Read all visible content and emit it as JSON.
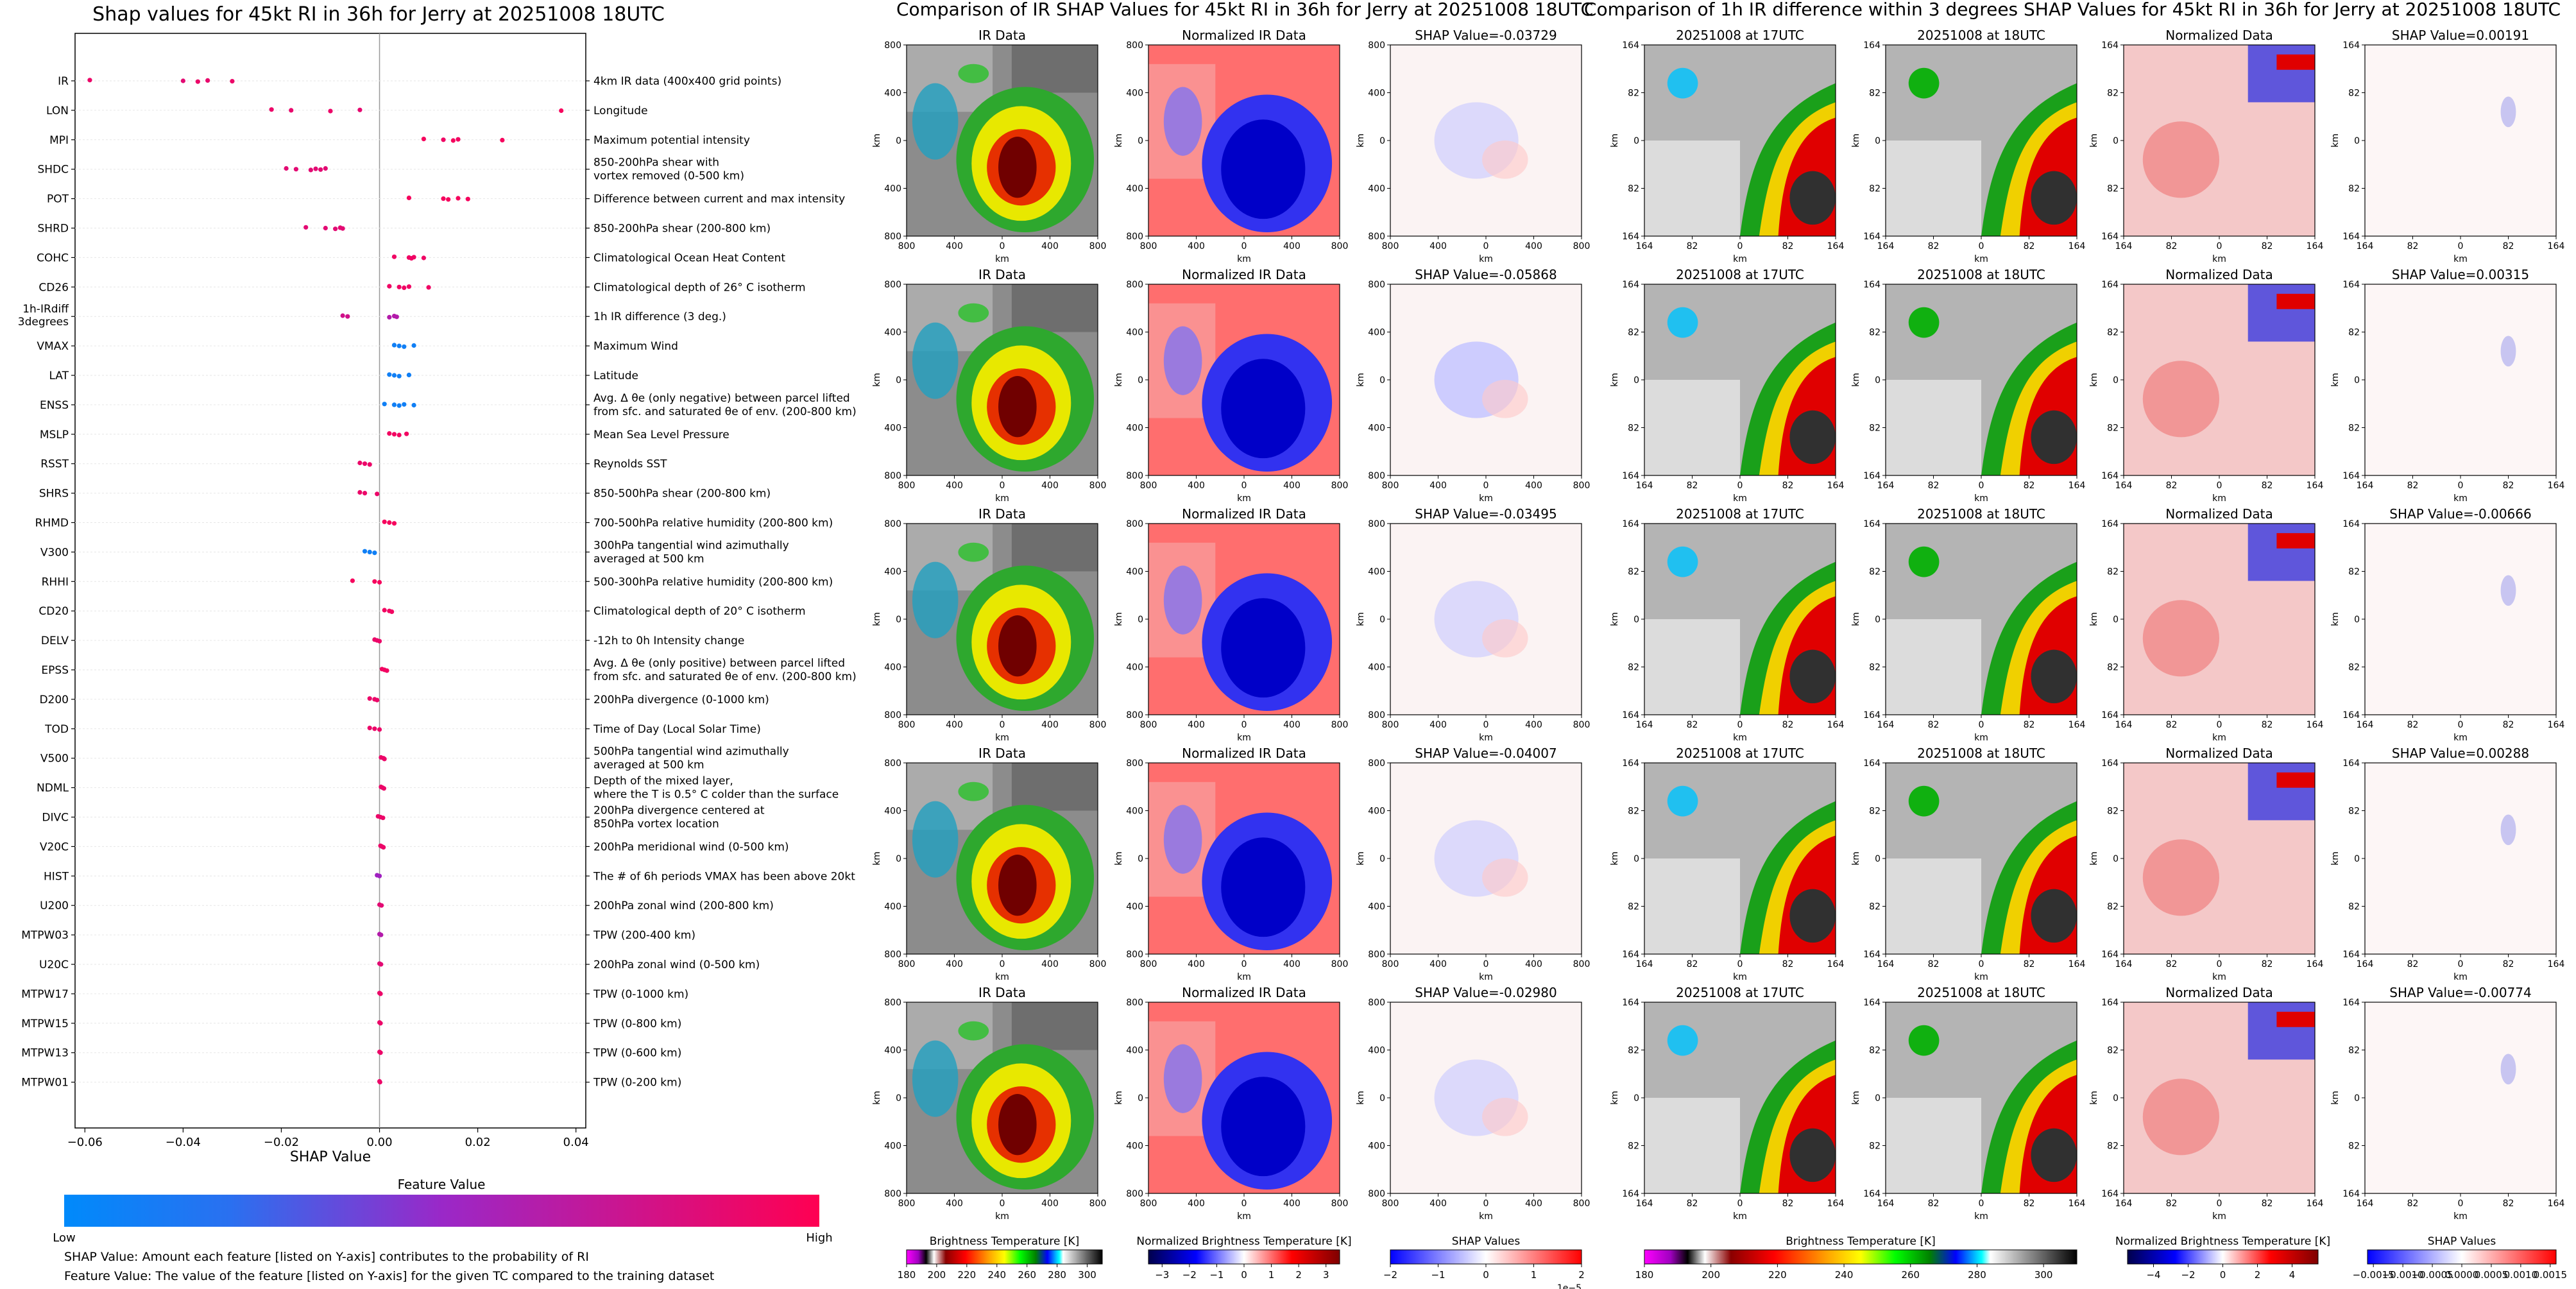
{
  "colors": {
    "low": "#008afb",
    "mid": "#a020c0",
    "high": "#ff0052",
    "axis": "#000000",
    "grid": "#e6e6e6",
    "zero_line": "#999999",
    "swatch_gray_light": "#d8d8d8",
    "swatch_gray_dark": "#505050",
    "swatch_red": "#ff5a5a",
    "swatch_blue": "#1010d0",
    "swatch_white": "#ffffff"
  },
  "chart_data": [
    {
      "type": "scatter",
      "title": "Shap values for 45kt RI in 36h for Jerry at 20251008 18UTC",
      "xlabel": "SHAP Value",
      "ylabel": "",
      "xlim": [
        -0.062,
        0.042
      ],
      "xticks": [
        -0.06,
        -0.04,
        -0.02,
        0.0,
        0.02,
        0.04
      ],
      "xtick_labels": [
        "−0.06",
        "−0.04",
        "−0.02",
        "0.00",
        "0.02",
        "0.04"
      ],
      "features": [
        {
          "name": "IR",
          "desc": [
            "4km IR data (400x400 grid points)"
          ],
          "shap": [
            -0.059,
            -0.04,
            -0.037,
            -0.035,
            -0.03
          ],
          "fv": [
            0.9,
            0.85,
            0.9,
            0.88,
            0.9
          ]
        },
        {
          "name": "LON",
          "desc": [
            "Longitude"
          ],
          "shap": [
            -0.022,
            -0.018,
            -0.01,
            -0.004,
            0.037
          ],
          "fv": [
            0.9,
            0.88,
            0.9,
            0.87,
            0.95
          ]
        },
        {
          "name": "MPI",
          "desc": [
            "Maximum potential intensity"
          ],
          "shap": [
            0.009,
            0.013,
            0.015,
            0.016,
            0.025
          ],
          "fv": [
            0.95,
            0.92,
            0.95,
            0.93,
            0.95
          ]
        },
        {
          "name": "SHDC",
          "desc": [
            "850-200hPa shear with",
            "vortex removed (0-500 km)"
          ],
          "shap": [
            -0.019,
            -0.017,
            -0.014,
            -0.013,
            -0.012,
            -0.011
          ],
          "fv": [
            0.85,
            0.85,
            0.85,
            0.85,
            0.85,
            0.85
          ]
        },
        {
          "name": "POT",
          "desc": [
            "Difference between current and max intensity"
          ],
          "shap": [
            0.006,
            0.013,
            0.014,
            0.016,
            0.018
          ],
          "fv": [
            0.95,
            0.95,
            0.95,
            0.95,
            0.95
          ]
        },
        {
          "name": "SHRD",
          "desc": [
            "850-200hPa shear (200-800 km)"
          ],
          "shap": [
            -0.015,
            -0.011,
            -0.009,
            -0.008,
            -0.0075
          ],
          "fv": [
            0.85,
            0.85,
            0.85,
            0.85,
            0.85
          ]
        },
        {
          "name": "COHC",
          "desc": [
            "Climatological Ocean Heat Content"
          ],
          "shap": [
            0.003,
            0.006,
            0.0065,
            0.007,
            0.009
          ],
          "fv": [
            0.92,
            0.92,
            0.92,
            0.92,
            0.92
          ]
        },
        {
          "name": "CD26",
          "desc": [
            "Climatological depth of 26° C isotherm"
          ],
          "shap": [
            0.002,
            0.004,
            0.005,
            0.006,
            0.01
          ],
          "fv": [
            0.92,
            0.92,
            0.92,
            0.92,
            0.92
          ]
        },
        {
          "name": [
            "1h-IRdiff",
            "3degrees"
          ],
          "desc": [
            "1h IR difference (3 deg.)"
          ],
          "shap": [
            -0.0075,
            -0.0065,
            0.002,
            0.003,
            0.0035
          ],
          "fv": [
            0.75,
            0.75,
            0.6,
            0.6,
            0.6
          ]
        },
        {
          "name": "VMAX",
          "desc": [
            "Maximum Wind"
          ],
          "shap": [
            0.003,
            0.004,
            0.005,
            0.007
          ],
          "fv": [
            0.05,
            0.05,
            0.05,
            0.05
          ]
        },
        {
          "name": "LAT",
          "desc": [
            "Latitude"
          ],
          "shap": [
            0.002,
            0.003,
            0.004,
            0.006
          ],
          "fv": [
            0.05,
            0.05,
            0.05,
            0.05
          ]
        },
        {
          "name": "ENSS",
          "desc": [
            "Avg. Δ θe (only negative) between parcel lifted",
            "from sfc. and saturated θe of env. (200-800 km)"
          ],
          "shap": [
            0.001,
            0.003,
            0.004,
            0.005,
            0.007
          ],
          "fv": [
            0.05,
            0.05,
            0.05,
            0.05,
            0.05
          ]
        },
        {
          "name": "MSLP",
          "desc": [
            "Mean Sea Level Pressure"
          ],
          "shap": [
            0.002,
            0.003,
            0.004,
            0.0055
          ],
          "fv": [
            0.93,
            0.93,
            0.93,
            0.93
          ]
        },
        {
          "name": "RSST",
          "desc": [
            "Reynolds SST"
          ],
          "shap": [
            -0.004,
            -0.003,
            -0.002
          ],
          "fv": [
            0.9,
            0.9,
            0.9
          ]
        },
        {
          "name": "SHRS",
          "desc": [
            "850-500hPa shear (200-800 km)"
          ],
          "shap": [
            -0.004,
            -0.003,
            -0.0005
          ],
          "fv": [
            0.9,
            0.9,
            0.9
          ]
        },
        {
          "name": "RHMD",
          "desc": [
            "700-500hPa relative humidity (200-800 km)"
          ],
          "shap": [
            0.001,
            0.002,
            0.003
          ],
          "fv": [
            0.95,
            0.95,
            0.95
          ]
        },
        {
          "name": "V300",
          "desc": [
            "300hPa tangential wind azimuthally",
            "averaged at 500 km"
          ],
          "shap": [
            -0.003,
            -0.002,
            -0.001
          ],
          "fv": [
            0.05,
            0.05,
            0.05
          ]
        },
        {
          "name": "RHHI",
          "desc": [
            "500-300hPa relative humidity (200-800 km)"
          ],
          "shap": [
            -0.0055,
            -0.001,
            0.0
          ],
          "fv": [
            0.95,
            0.95,
            0.95
          ]
        },
        {
          "name": "CD20",
          "desc": [
            "Climatological depth of 20° C isotherm"
          ],
          "shap": [
            0.001,
            0.002,
            0.0025
          ],
          "fv": [
            0.93,
            0.93,
            0.93
          ]
        },
        {
          "name": "DELV",
          "desc": [
            "-12h to 0h Intensity change"
          ],
          "shap": [
            -0.001,
            -0.0005,
            0.0
          ],
          "fv": [
            0.9,
            0.9,
            0.9
          ]
        },
        {
          "name": "EPSS",
          "desc": [
            "Avg. Δ θe (only positive) between parcel lifted",
            "from sfc. and saturated θe of env. (200-800 km)"
          ],
          "shap": [
            0.0005,
            0.001,
            0.0015
          ],
          "fv": [
            0.93,
            0.93,
            0.93
          ]
        },
        {
          "name": "D200",
          "desc": [
            "200hPa divergence (0-1000 km)"
          ],
          "shap": [
            -0.002,
            -0.001,
            -0.0005
          ],
          "fv": [
            0.9,
            0.9,
            0.9
          ]
        },
        {
          "name": "TOD",
          "desc": [
            "Time of Day (Local Solar Time)"
          ],
          "shap": [
            -0.002,
            -0.001,
            0.0
          ],
          "fv": [
            0.9,
            0.9,
            0.9
          ]
        },
        {
          "name": "V500",
          "desc": [
            "500hPa tangential wind azimuthally",
            "averaged at 500 km"
          ],
          "shap": [
            0.0003,
            0.0008,
            0.001
          ],
          "fv": [
            0.9,
            0.9,
            0.9
          ]
        },
        {
          "name": "NDML",
          "desc": [
            "Depth of the mixed layer,",
            "where the T is 0.5° C colder than the surface"
          ],
          "shap": [
            0.0003,
            0.0006,
            0.0009
          ],
          "fv": [
            0.9,
            0.9,
            0.9
          ]
        },
        {
          "name": "DIVC",
          "desc": [
            "200hPa divergence centered at",
            "850hPa vortex location"
          ],
          "shap": [
            -0.0003,
            0.0002,
            0.0007
          ],
          "fv": [
            0.9,
            0.9,
            0.9
          ]
        },
        {
          "name": "V20C",
          "desc": [
            "200hPa meridional wind (0-500 km)"
          ],
          "shap": [
            0.0002,
            0.0005,
            0.0008
          ],
          "fv": [
            0.9,
            0.9,
            0.9
          ]
        },
        {
          "name": "HIST",
          "desc": [
            "The # of 6h periods VMAX has been above 20kt"
          ],
          "shap": [
            -0.0005,
            0.0
          ],
          "fv": [
            0.5,
            0.5
          ]
        },
        {
          "name": "U200",
          "desc": [
            "200hPa zonal wind (200-800 km)"
          ],
          "shap": [
            0.0,
            0.0004
          ],
          "fv": [
            0.85,
            0.85
          ]
        },
        {
          "name": "MTPW03",
          "desc": [
            "TPW (200-400 km)"
          ],
          "shap": [
            0.0,
            0.0003
          ],
          "fv": [
            0.6,
            0.6
          ]
        },
        {
          "name": "U20C",
          "desc": [
            "200hPa zonal wind (0-500 km)"
          ],
          "shap": [
            0.0,
            0.0003
          ],
          "fv": [
            0.85,
            0.85
          ]
        },
        {
          "name": "MTPW17",
          "desc": [
            "TPW (0-1000 km)"
          ],
          "shap": [
            0.0,
            0.0002
          ],
          "fv": [
            0.9,
            0.9
          ]
        },
        {
          "name": "MTPW15",
          "desc": [
            "TPW (0-800 km)"
          ],
          "shap": [
            0.0,
            0.0002
          ],
          "fv": [
            0.9,
            0.9
          ]
        },
        {
          "name": "MTPW13",
          "desc": [
            "TPW (0-600 km)"
          ],
          "shap": [
            0.0,
            0.0002
          ],
          "fv": [
            0.9,
            0.9
          ]
        },
        {
          "name": "MTPW01",
          "desc": [
            "TPW (0-200 km)"
          ],
          "shap": [
            0.0,
            0.0001
          ],
          "fv": [
            0.9,
            0.9
          ]
        }
      ],
      "colorbar": {
        "title": "Feature Value",
        "low_label": "Low",
        "high_label": "High"
      },
      "notes": [
        "SHAP Value: Amount each feature [listed on Y-axis] contributes to the probability of RI",
        "Feature Value: The value of the feature [listed on Y-axis] for the given TC compared to the training dataset"
      ]
    },
    {
      "type": "heatmap",
      "title": "Comparison of IR SHAP Values for 45kt RI in 36h for Jerry at 20251008 18UTC",
      "column_titles": [
        "IR Data",
        "Normalized IR Data"
      ],
      "shap_titles": [
        "SHAP Value=-0.03729",
        "SHAP Value=-0.05868",
        "SHAP Value=-0.03495",
        "SHAP Value=-0.04007",
        "SHAP Value=-0.02980"
      ],
      "xlabel": "km",
      "ylabel": "km",
      "tick_labels": [
        "800",
        "400",
        "0",
        "400",
        "800"
      ],
      "colorbars": [
        {
          "title": "Brightness Temperature [K]",
          "ticks": [
            "180",
            "200",
            "220",
            "240",
            "260",
            "280",
            "300"
          ],
          "range": [
            180,
            310
          ]
        },
        {
          "title": "Normalized Brightness Temperature [K]",
          "ticks": [
            "−3",
            "−2",
            "−1",
            "0",
            "1",
            "2",
            "3"
          ],
          "range": [
            -3.5,
            3.5
          ]
        },
        {
          "title": "SHAP Values",
          "ticks": [
            "−2",
            "−1",
            "0",
            "1",
            "2"
          ],
          "range": [
            -2,
            2
          ],
          "offset": "1e−5"
        }
      ]
    },
    {
      "type": "heatmap",
      "title": "Comparison of 1h IR difference within 3 degrees SHAP Values for 45kt RI in 36h for Jerry at 20251008 18UTC",
      "column_titles": [
        "20251008 at 17UTC",
        "20251008 at 18UTC",
        "Normalized Data"
      ],
      "shap_titles": [
        "SHAP Value=0.00191",
        "SHAP Value=0.00315",
        "SHAP Value=-0.00666",
        "SHAP Value=0.00288",
        "SHAP Value=-0.00774"
      ],
      "xlabel": "km",
      "ylabel": "km",
      "tick_labels": [
        "164",
        "82",
        "0",
        "82",
        "164"
      ],
      "colorbars": [
        {
          "title": "Brightness Temperature [K]",
          "ticks": [
            "180",
            "200",
            "220",
            "240",
            "260",
            "280",
            "300"
          ],
          "range": [
            180,
            310
          ]
        },
        {
          "title": "Normalized Brightness Temperature [K]",
          "ticks": [
            "−4",
            "−2",
            "0",
            "2",
            "4"
          ],
          "range": [
            -5.5,
            5.5
          ]
        },
        {
          "title": "SHAP Values",
          "ticks": [
            "−0.0015",
            "−0.0010",
            "−0.0005",
            "0.0000",
            "0.0005",
            "0.0010",
            "0.0015"
          ],
          "range": [
            -0.0016,
            0.0016
          ]
        }
      ]
    }
  ]
}
